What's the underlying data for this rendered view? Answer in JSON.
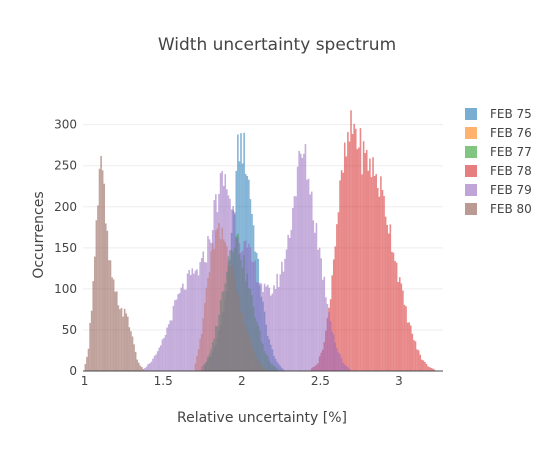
{
  "chart_data": {
    "type": "histogram",
    "title": "Width uncertainty spectrum",
    "xlabel": "Relative uncertainty [%]",
    "ylabel": "Occurrences",
    "xlim": [
      0.99,
      3.28
    ],
    "ylim": [
      0,
      330
    ],
    "x_ticks": [
      {
        "value": 1,
        "label": "1"
      },
      {
        "value": 1.5,
        "label": "1.5"
      },
      {
        "value": 2,
        "label": "2"
      },
      {
        "value": 2.5,
        "label": "2.5"
      },
      {
        "value": 3,
        "label": "3"
      }
    ],
    "y_ticks": [
      {
        "value": 0,
        "label": "0"
      },
      {
        "value": 50,
        "label": "50"
      },
      {
        "value": 100,
        "label": "100"
      },
      {
        "value": 150,
        "label": "150"
      },
      {
        "value": 200,
        "label": "200"
      },
      {
        "value": 250,
        "label": "250"
      },
      {
        "value": 300,
        "label": "300"
      }
    ],
    "grid": true,
    "legend_position": "right",
    "series": [
      {
        "name": "FEB 75",
        "color": "#1f77b4",
        "points": [
          [
            1.74,
            5
          ],
          [
            1.8,
            18
          ],
          [
            1.84,
            40
          ],
          [
            1.88,
            75
          ],
          [
            1.92,
            130
          ],
          [
            1.95,
            210
          ],
          [
            1.97,
            265
          ],
          [
            1.99,
            275
          ],
          [
            2.01,
            268
          ],
          [
            2.03,
            245
          ],
          [
            2.05,
            215
          ],
          [
            2.07,
            175
          ],
          [
            2.09,
            140
          ],
          [
            2.11,
            110
          ],
          [
            2.13,
            80
          ],
          [
            2.15,
            55
          ],
          [
            2.18,
            30
          ],
          [
            2.22,
            10
          ],
          [
            2.26,
            2
          ]
        ]
      },
      {
        "name": "FEB 76",
        "color": "#ff7f0e",
        "points": [
          [
            1.7,
            10
          ],
          [
            1.74,
            45
          ],
          [
            1.77,
            100
          ],
          [
            1.8,
            135
          ],
          [
            1.82,
            158
          ],
          [
            1.84,
            168
          ],
          [
            1.86,
            162
          ],
          [
            1.88,
            160
          ],
          [
            1.9,
            152
          ],
          [
            1.92,
            138
          ],
          [
            1.95,
            112
          ],
          [
            1.98,
            85
          ],
          [
            2.02,
            55
          ],
          [
            2.06,
            30
          ],
          [
            2.1,
            12
          ],
          [
            2.14,
            3
          ]
        ]
      },
      {
        "name": "FEB 77",
        "color": "#2ca02c",
        "points": [
          [
            1.76,
            8
          ],
          [
            1.8,
            25
          ],
          [
            1.84,
            60
          ],
          [
            1.88,
            105
          ],
          [
            1.91,
            140
          ],
          [
            1.93,
            158
          ],
          [
            1.95,
            162
          ],
          [
            1.97,
            158
          ],
          [
            1.99,
            145
          ],
          [
            2.02,
            120
          ],
          [
            2.05,
            95
          ],
          [
            2.08,
            70
          ],
          [
            2.11,
            45
          ],
          [
            2.14,
            25
          ],
          [
            2.18,
            10
          ],
          [
            2.22,
            3
          ]
        ]
      },
      {
        "name": "FEB 78",
        "color": "#d62728",
        "points": [
          [
            2.44,
            3
          ],
          [
            2.48,
            10
          ],
          [
            2.52,
            35
          ],
          [
            2.55,
            75
          ],
          [
            2.58,
            140
          ],
          [
            2.61,
            200
          ],
          [
            2.64,
            245
          ],
          [
            2.67,
            275
          ],
          [
            2.69,
            290
          ],
          [
            2.71,
            298
          ],
          [
            2.73,
            285
          ],
          [
            2.75,
            270
          ],
          [
            2.78,
            258
          ],
          [
            2.81,
            255
          ],
          [
            2.84,
            240
          ],
          [
            2.87,
            228
          ],
          [
            2.9,
            205
          ],
          [
            2.93,
            180
          ],
          [
            2.96,
            150
          ],
          [
            2.99,
            120
          ],
          [
            3.02,
            90
          ],
          [
            3.05,
            65
          ],
          [
            3.08,
            45
          ],
          [
            3.11,
            28
          ],
          [
            3.14,
            15
          ],
          [
            3.18,
            6
          ],
          [
            3.22,
            2
          ]
        ]
      },
      {
        "name": "FEB 79",
        "color": "#9467bd",
        "points": [
          [
            1.38,
            4
          ],
          [
            1.42,
            12
          ],
          [
            1.46,
            22
          ],
          [
            1.5,
            40
          ],
          [
            1.54,
            62
          ],
          [
            1.58,
            85
          ],
          [
            1.62,
            100
          ],
          [
            1.66,
            112
          ],
          [
            1.7,
            118
          ],
          [
            1.74,
            128
          ],
          [
            1.77,
            145
          ],
          [
            1.8,
            170
          ],
          [
            1.83,
            205
          ],
          [
            1.86,
            225
          ],
          [
            1.88,
            232
          ],
          [
            1.9,
            225
          ],
          [
            1.93,
            205
          ],
          [
            1.96,
            178
          ],
          [
            1.99,
            160
          ],
          [
            2.02,
            148
          ],
          [
            2.05,
            138
          ],
          [
            2.08,
            125
          ],
          [
            2.11,
            110
          ],
          [
            2.14,
            98
          ],
          [
            2.17,
            95
          ],
          [
            2.2,
            102
          ],
          [
            2.23,
            112
          ],
          [
            2.26,
            130
          ],
          [
            2.29,
            158
          ],
          [
            2.32,
            200
          ],
          [
            2.35,
            240
          ],
          [
            2.37,
            258
          ],
          [
            2.39,
            262
          ],
          [
            2.41,
            248
          ],
          [
            2.43,
            225
          ],
          [
            2.45,
            195
          ],
          [
            2.48,
            160
          ],
          [
            2.51,
            120
          ],
          [
            2.54,
            85
          ],
          [
            2.57,
            52
          ],
          [
            2.6,
            28
          ],
          [
            2.64,
            10
          ],
          [
            2.68,
            3
          ]
        ]
      },
      {
        "name": "FEB 80",
        "color": "#8c564b",
        "points": [
          [
            1.0,
            8
          ],
          [
            1.02,
            30
          ],
          [
            1.04,
            80
          ],
          [
            1.06,
            150
          ],
          [
            1.08,
            205
          ],
          [
            1.09,
            235
          ],
          [
            1.1,
            245
          ],
          [
            1.11,
            235
          ],
          [
            1.12,
            212
          ],
          [
            1.13,
            180
          ],
          [
            1.15,
            140
          ],
          [
            1.17,
            110
          ],
          [
            1.19,
            95
          ],
          [
            1.21,
            85
          ],
          [
            1.23,
            75
          ],
          [
            1.25,
            70
          ],
          [
            1.27,
            62
          ],
          [
            1.29,
            50
          ],
          [
            1.31,
            32
          ],
          [
            1.33,
            15
          ],
          [
            1.35,
            6
          ],
          [
            1.38,
            1
          ]
        ]
      }
    ]
  }
}
